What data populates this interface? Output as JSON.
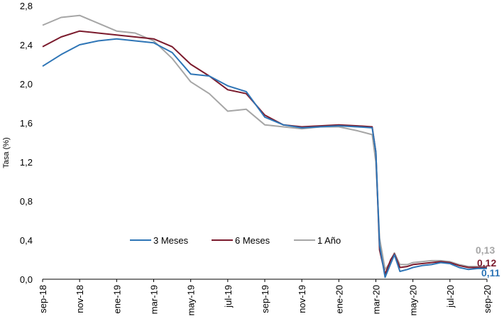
{
  "chart_data": {
    "type": "line",
    "title": "",
    "ylabel": "Tasa (%)",
    "xlabel": "",
    "ylim": [
      0,
      2.8
    ],
    "yticks": [
      "0,0",
      "0,4",
      "0,8",
      "1,2",
      "1,6",
      "2,0",
      "2,4",
      "2,8"
    ],
    "ytick_values": [
      0,
      0.4,
      0.8,
      1.2,
      1.6,
      2.0,
      2.4,
      2.8
    ],
    "xticks": [
      "sep-18",
      "nov-18",
      "ene-19",
      "mar-19",
      "may-19",
      "jul-19",
      "sep-19",
      "nov-19",
      "ene-20",
      "mar-20",
      "may-20",
      "jul-20",
      "sep-20"
    ],
    "x_start": "sep-18",
    "x_end": "sep-20",
    "grid": false,
    "legend_position": "bottom-center",
    "series": [
      {
        "name": "3 Meses",
        "color": "#2E75B6",
        "end_label": "0,11",
        "points": [
          [
            0,
            2.18
          ],
          [
            1,
            2.3
          ],
          [
            2,
            2.4
          ],
          [
            3,
            2.44
          ],
          [
            4,
            2.46
          ],
          [
            5,
            2.44
          ],
          [
            6,
            2.42
          ],
          [
            7,
            2.32
          ],
          [
            8,
            2.1
          ],
          [
            9,
            2.08
          ],
          [
            10,
            1.98
          ],
          [
            11,
            1.92
          ],
          [
            12,
            1.66
          ],
          [
            13,
            1.58
          ],
          [
            14,
            1.55
          ],
          [
            15,
            1.56
          ],
          [
            16,
            1.57
          ],
          [
            17,
            1.56
          ],
          [
            17.8,
            1.55
          ],
          [
            18,
            1.3
          ],
          [
            18.2,
            0.35
          ],
          [
            18.5,
            0.02
          ],
          [
            18.8,
            0.16
          ],
          [
            19,
            0.25
          ],
          [
            19.3,
            0.08
          ],
          [
            19.7,
            0.1
          ],
          [
            20,
            0.12
          ],
          [
            20.5,
            0.14
          ],
          [
            21,
            0.15
          ],
          [
            21.5,
            0.17
          ],
          [
            22,
            0.16
          ],
          [
            22.5,
            0.12
          ],
          [
            23,
            0.1
          ],
          [
            23.5,
            0.11
          ],
          [
            24,
            0.11
          ]
        ]
      },
      {
        "name": "6 Meses",
        "color": "#7B1B2D",
        "end_label": "0,12",
        "points": [
          [
            0,
            2.38
          ],
          [
            1,
            2.48
          ],
          [
            2,
            2.54
          ],
          [
            3,
            2.52
          ],
          [
            4,
            2.5
          ],
          [
            5,
            2.48
          ],
          [
            6,
            2.46
          ],
          [
            7,
            2.38
          ],
          [
            8,
            2.2
          ],
          [
            9,
            2.08
          ],
          [
            10,
            1.94
          ],
          [
            11,
            1.9
          ],
          [
            12,
            1.68
          ],
          [
            13,
            1.58
          ],
          [
            14,
            1.56
          ],
          [
            15,
            1.57
          ],
          [
            16,
            1.58
          ],
          [
            17,
            1.57
          ],
          [
            17.8,
            1.56
          ],
          [
            18,
            1.3
          ],
          [
            18.2,
            0.3
          ],
          [
            18.5,
            0.05
          ],
          [
            18.8,
            0.2
          ],
          [
            19,
            0.26
          ],
          [
            19.3,
            0.12
          ],
          [
            19.7,
            0.13
          ],
          [
            20,
            0.15
          ],
          [
            20.5,
            0.16
          ],
          [
            21,
            0.17
          ],
          [
            21.5,
            0.18
          ],
          [
            22,
            0.17
          ],
          [
            22.5,
            0.14
          ],
          [
            23,
            0.12
          ],
          [
            23.5,
            0.12
          ],
          [
            24,
            0.12
          ]
        ]
      },
      {
        "name": "1 Año",
        "color": "#A6A6A6",
        "end_label": "0,13",
        "points": [
          [
            0,
            2.6
          ],
          [
            1,
            2.68
          ],
          [
            2,
            2.7
          ],
          [
            3,
            2.62
          ],
          [
            4,
            2.54
          ],
          [
            5,
            2.52
          ],
          [
            6,
            2.44
          ],
          [
            7,
            2.26
          ],
          [
            8,
            2.02
          ],
          [
            9,
            1.9
          ],
          [
            10,
            1.72
          ],
          [
            11,
            1.74
          ],
          [
            12,
            1.58
          ],
          [
            13,
            1.56
          ],
          [
            14,
            1.54
          ],
          [
            15,
            1.56
          ],
          [
            16,
            1.56
          ],
          [
            17,
            1.52
          ],
          [
            17.8,
            1.48
          ],
          [
            18,
            1.2
          ],
          [
            18.2,
            0.42
          ],
          [
            18.5,
            0.1
          ],
          [
            18.8,
            0.18
          ],
          [
            19,
            0.27
          ],
          [
            19.3,
            0.15
          ],
          [
            19.7,
            0.15
          ],
          [
            20,
            0.17
          ],
          [
            20.5,
            0.18
          ],
          [
            21,
            0.19
          ],
          [
            21.5,
            0.19
          ],
          [
            22,
            0.18
          ],
          [
            22.5,
            0.15
          ],
          [
            23,
            0.13
          ],
          [
            23.5,
            0.13
          ],
          [
            24,
            0.13
          ]
        ]
      }
    ]
  }
}
